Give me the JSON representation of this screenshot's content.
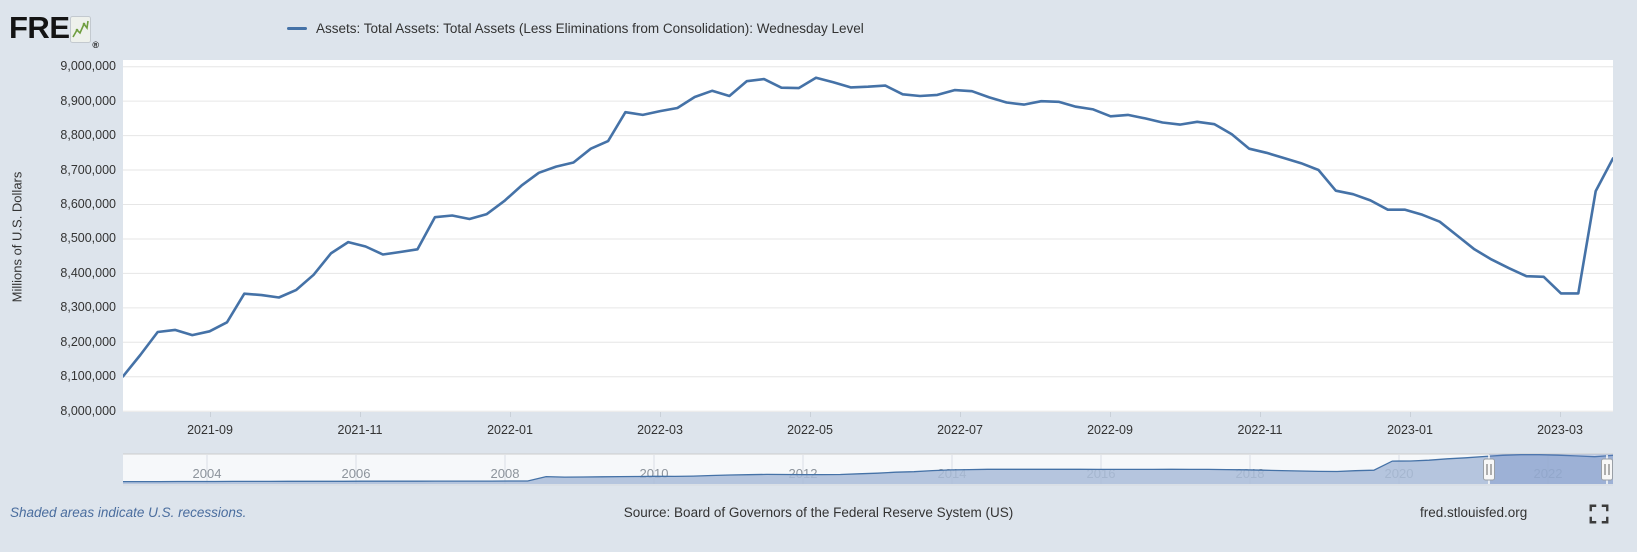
{
  "header": {
    "logo": "FRED",
    "registered": "®",
    "logo_icon": "sparkline-icon",
    "legend_label": "Assets: Total Assets: Total Assets (Less Eliminations from Consolidation): Wednesday Level"
  },
  "footer": {
    "note": "Shaded areas indicate U.S. recessions.",
    "source": "Source: Board of Governors of the Federal Reserve System (US)",
    "site": "fred.stlouisfed.org",
    "fullscreen_icon": "fullscreen-icon"
  },
  "colors": {
    "background": "#dde4ec",
    "plot_bg": "#ffffff",
    "series_line": "#4572a7",
    "gridline": "#e6e6e6",
    "axis_text": "#333333",
    "nav_bg": "#f6f8fa",
    "nav_border": "#cccccc",
    "nav_year_grid": "#d9dee5",
    "nav_year_text": "#8d949c",
    "nav_area_fill": "#a9bcd8",
    "nav_mask": "rgba(102,133,194,0.30)",
    "footer_note_text": "#4a6d9e"
  },
  "chart_data": {
    "type": "line",
    "title": "Assets: Total Assets: Total Assets (Less Eliminations from Consolidation): Wednesday Level",
    "ylabel": "Millions of U.S. Dollars",
    "frequency": "weekly (Wednesday)",
    "start_date": "2021-07-28",
    "end_date": "2023-03-22",
    "ylim": [
      8000000,
      9000000
    ],
    "ytick_values": [
      9000000,
      8900000,
      8800000,
      8700000,
      8600000,
      8500000,
      8400000,
      8300000,
      8200000,
      8100000,
      8000000
    ],
    "xticks": [
      "2021-09",
      "2021-11",
      "2022-01",
      "2022-03",
      "2022-05",
      "2022-07",
      "2022-09",
      "2022-11",
      "2023-01",
      "2023-03"
    ],
    "grid": "horizontal",
    "legend_position": "top",
    "values": [
      8101000,
      8163000,
      8230000,
      8236000,
      8221000,
      8232000,
      8258000,
      8341000,
      8337000,
      8330000,
      8352000,
      8396000,
      8458000,
      8491000,
      8478000,
      8455000,
      8462000,
      8470000,
      8563000,
      8568000,
      8558000,
      8572000,
      8610000,
      8655000,
      8692000,
      8710000,
      8722000,
      8762000,
      8784000,
      8868000,
      8860000,
      8871000,
      8880000,
      8912000,
      8930000,
      8915000,
      8958000,
      8964000,
      8939000,
      8938000,
      8968000,
      8955000,
      8940000,
      8942000,
      8945000,
      8920000,
      8915000,
      8918000,
      8932000,
      8929000,
      8911000,
      8896000,
      8890000,
      8900000,
      8898000,
      8884000,
      8876000,
      8856000,
      8860000,
      8850000,
      8838000,
      8832000,
      8840000,
      8833000,
      8804000,
      8762000,
      8750000,
      8735000,
      8720000,
      8700000,
      8640000,
      8630000,
      8612000,
      8585000,
      8585000,
      8570000,
      8550000,
      8510000,
      8470000,
      8440000,
      8415000,
      8392000,
      8390000,
      8342000,
      8342000,
      8639000,
      8734000
    ],
    "navigator": {
      "range_start": "2003",
      "range_end": "2023-03",
      "year_ticks": [
        "2004",
        "2006",
        "2008",
        "2010",
        "2012",
        "2014",
        "2016",
        "2018",
        "2020",
        "2022"
      ],
      "selected_start_fraction": 0.9165,
      "selected_end_fraction": 1.0,
      "values": [
        720000,
        730000,
        740000,
        750000,
        760000,
        770000,
        780000,
        790000,
        800000,
        810000,
        815000,
        825000,
        830000,
        840000,
        850000,
        855000,
        860000,
        870000,
        880000,
        890000,
        900000,
        905000,
        910000,
        2250000,
        2100000,
        2150000,
        2200000,
        2250000,
        2300000,
        2340000,
        2310000,
        2420000,
        2600000,
        2750000,
        2850000,
        2920000,
        2900000,
        2880000,
        2860000,
        2900000,
        3100000,
        3300000,
        3600000,
        3750000,
        4100000,
        4300000,
        4400000,
        4500000,
        4500000,
        4490000,
        4480000,
        4490000,
        4470000,
        4460000,
        4450000,
        4450000,
        4460000,
        4470000,
        4460000,
        4440000,
        4390000,
        4320000,
        4210000,
        4100000,
        3970000,
        3850000,
        3800000,
        4050000,
        4200000,
        7000000,
        7010000,
        7250000,
        7690000,
        8000000,
        8400000,
        8760000,
        8940000,
        8930000,
        8800000,
        8580000,
        8340000,
        8730000
      ]
    }
  }
}
